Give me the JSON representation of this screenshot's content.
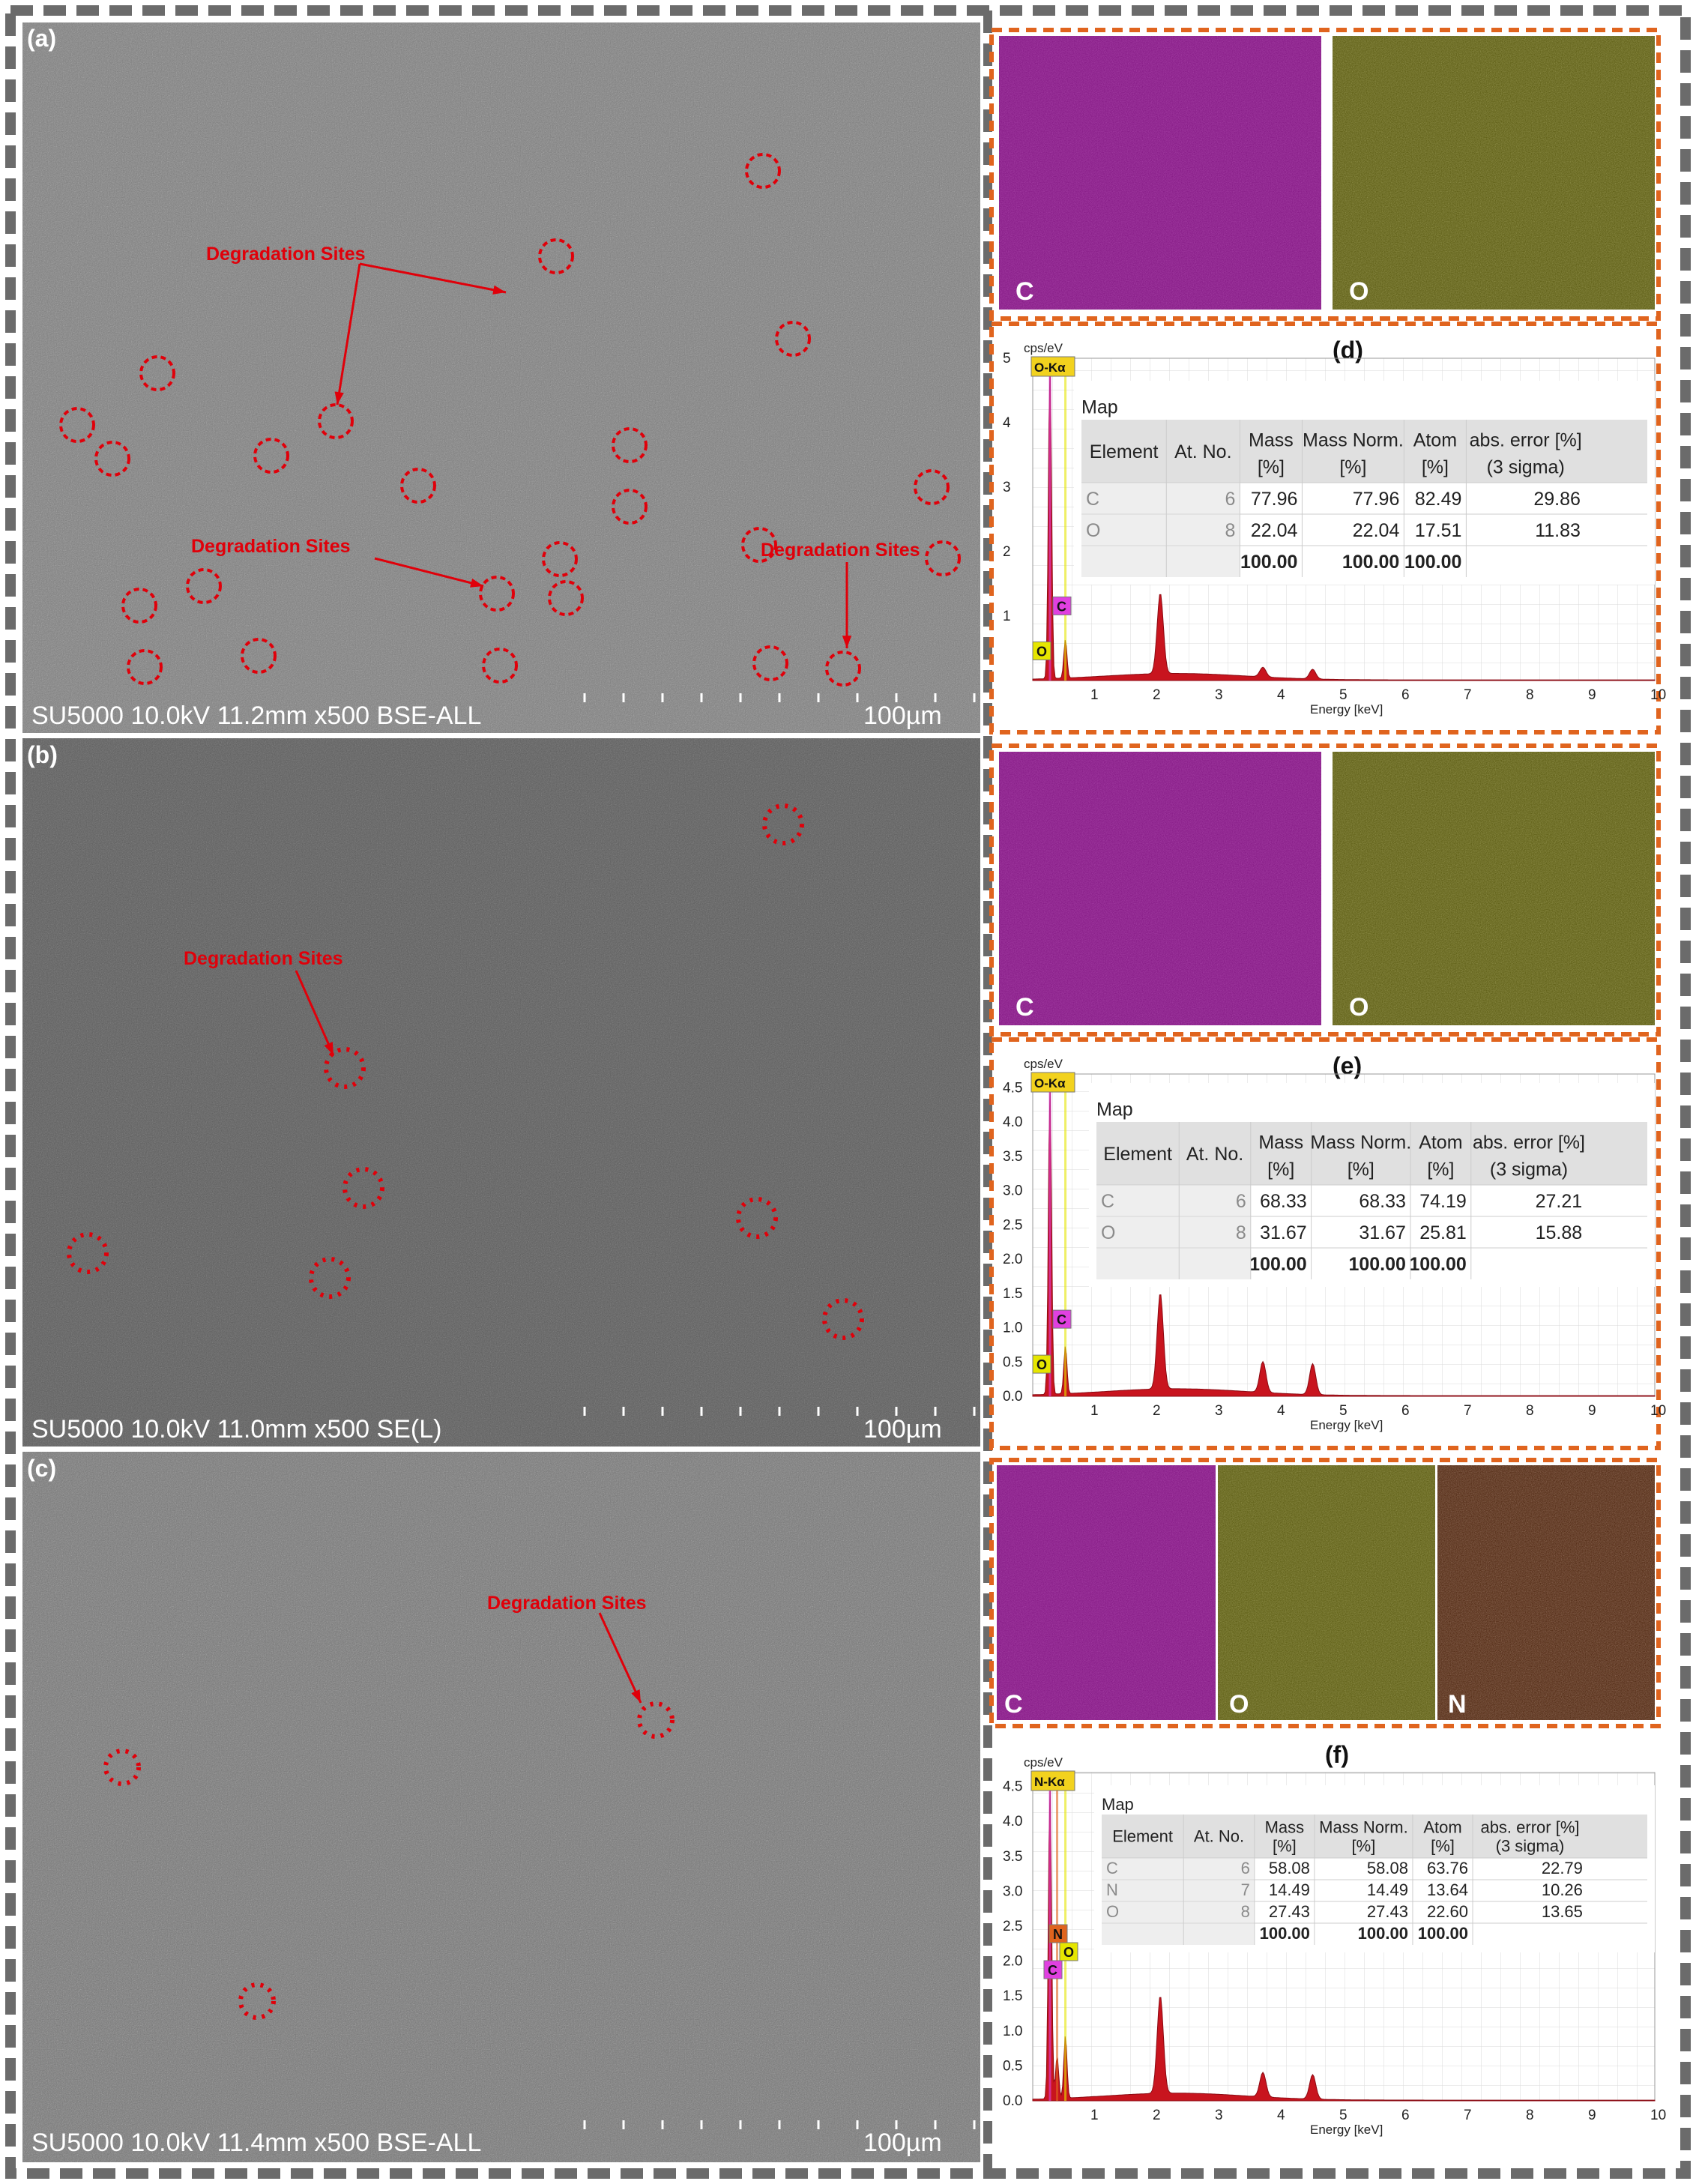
{
  "panels": {
    "a": {
      "letter": "(a)",
      "info_bar": "SU5000 10.0kV 11.2mm x500 BSE-ALL",
      "scale": "100µm",
      "annotations": [
        "Degradation Sites",
        "Degradation Sites",
        "Degradation Sites"
      ]
    },
    "b": {
      "letter": "(b)",
      "info_bar": "SU5000 10.0kV 11.0mm x500 SE(L)",
      "scale": "100µm",
      "annotations": [
        "Degradation Sites"
      ]
    },
    "c": {
      "letter": "(c)",
      "info_bar": "SU5000 10.0kV 11.4mm x500 BSE-ALL",
      "scale": "100µm",
      "annotations": [
        "Degradation Sites"
      ]
    }
  },
  "maps": {
    "d": [
      "C",
      "O"
    ],
    "e": [
      "C",
      "O"
    ],
    "f": [
      "C",
      "O",
      "N"
    ]
  },
  "table_headers": {
    "title": "Map",
    "element": "Element",
    "at_no": "At. No.",
    "mass": [
      "Mass",
      "[%]"
    ],
    "mass_norm": [
      "Mass Norm.",
      "[%]"
    ],
    "atom": [
      "Atom",
      "[%]"
    ],
    "abs_error": [
      "abs. error [%]",
      "(3 sigma)"
    ]
  },
  "chart_data": [
    {
      "type": "table",
      "panel": "(d)",
      "rows": [
        {
          "element": "C",
          "at_no": "6",
          "mass": "77.96",
          "mass_norm": "77.96",
          "atom": "82.49",
          "abs_error": "29.86"
        },
        {
          "element": "O",
          "at_no": "8",
          "mass": "22.04",
          "mass_norm": "22.04",
          "atom": "17.51",
          "abs_error": "11.83"
        }
      ],
      "totals": {
        "mass": "100.00",
        "mass_norm": "100.00",
        "atom": "100.00"
      },
      "spectrum": {
        "type": "area",
        "ylabel": "cps/eV",
        "xlabel": "Energy [keV]",
        "xlim": [
          0,
          10
        ],
        "ylim": [
          0,
          5
        ],
        "xticks": [
          "1",
          "2",
          "3",
          "4",
          "5",
          "6",
          "7",
          "8",
          "9",
          "10"
        ],
        "yticks": [
          "1",
          "2",
          "3",
          "4",
          "5"
        ],
        "peaks": [
          {
            "label": "C",
            "x": 0.277,
            "y": 5.0
          },
          {
            "label": "O",
            "x": 0.525,
            "y": 0.6
          },
          {
            "label": "",
            "x": 2.05,
            "y": 1.25
          },
          {
            "label": "",
            "x": 3.7,
            "y": 0.15
          },
          {
            "label": "",
            "x": 4.5,
            "y": 0.15
          }
        ],
        "line_markers": [
          "O-Kα",
          "C",
          "O"
        ]
      }
    },
    {
      "type": "table",
      "panel": "(e)",
      "rows": [
        {
          "element": "C",
          "at_no": "6",
          "mass": "68.33",
          "mass_norm": "68.33",
          "atom": "74.19",
          "abs_error": "27.21"
        },
        {
          "element": "O",
          "at_no": "8",
          "mass": "31.67",
          "mass_norm": "31.67",
          "atom": "25.81",
          "abs_error": "15.88"
        }
      ],
      "totals": {
        "mass": "100.00",
        "mass_norm": "100.00",
        "atom": "100.00"
      },
      "spectrum": {
        "type": "area",
        "ylabel": "cps/eV",
        "xlabel": "Energy [keV]",
        "xlim": [
          0,
          10
        ],
        "ylim": [
          0,
          4.7
        ],
        "xticks": [
          "1",
          "2",
          "3",
          "4",
          "5",
          "6",
          "7",
          "8",
          "9",
          "10"
        ],
        "yticks": [
          "0.0",
          "0.5",
          "1.0",
          "1.5",
          "2.0",
          "2.5",
          "3.0",
          "3.5",
          "4.0",
          "4.5"
        ],
        "peaks": [
          {
            "label": "C",
            "x": 0.277,
            "y": 4.6
          },
          {
            "label": "O",
            "x": 0.525,
            "y": 0.7
          },
          {
            "label": "",
            "x": 2.05,
            "y": 1.4
          },
          {
            "label": "",
            "x": 3.7,
            "y": 0.45
          },
          {
            "label": "",
            "x": 4.5,
            "y": 0.45
          }
        ],
        "line_markers": [
          "O-Kα",
          "C",
          "O"
        ]
      }
    },
    {
      "type": "table",
      "panel": "(f)",
      "rows": [
        {
          "element": "C",
          "at_no": "6",
          "mass": "58.08",
          "mass_norm": "58.08",
          "atom": "63.76",
          "abs_error": "22.79"
        },
        {
          "element": "N",
          "at_no": "7",
          "mass": "14.49",
          "mass_norm": "14.49",
          "atom": "13.64",
          "abs_error": "10.26"
        },
        {
          "element": "O",
          "at_no": "8",
          "mass": "27.43",
          "mass_norm": "27.43",
          "atom": "22.60",
          "abs_error": "13.65"
        }
      ],
      "totals": {
        "mass": "100.00",
        "mass_norm": "100.00",
        "atom": "100.00"
      },
      "spectrum": {
        "type": "area",
        "ylabel": "cps/eV",
        "xlabel": "Energy [keV]",
        "xlim": [
          0,
          10
        ],
        "ylim": [
          0,
          4.7
        ],
        "xticks": [
          "1",
          "2",
          "3",
          "4",
          "5",
          "6",
          "7",
          "8",
          "9",
          "10"
        ],
        "yticks": [
          "0.0",
          "0.5",
          "1.0",
          "1.5",
          "2.0",
          "2.5",
          "3.0",
          "3.5",
          "4.0",
          "4.5"
        ],
        "peaks": [
          {
            "label": "C",
            "x": 0.277,
            "y": 4.6
          },
          {
            "label": "N",
            "x": 0.392,
            "y": 0.6
          },
          {
            "label": "O",
            "x": 0.525,
            "y": 0.9
          },
          {
            "label": "",
            "x": 2.05,
            "y": 1.4
          },
          {
            "label": "",
            "x": 3.7,
            "y": 0.35
          },
          {
            "label": "",
            "x": 4.5,
            "y": 0.35
          }
        ],
        "line_markers": [
          "N-Kα",
          "N",
          "O",
          "C"
        ]
      }
    }
  ],
  "colors": {
    "frame_dash": "#6b6b6b",
    "orange_dash": "#e0641e",
    "annotation_red": "#e0000a",
    "spectrum_fill": "#c8141e",
    "carbon_map": "#c81ec8",
    "oxygen_map": "#d2d21e",
    "nitrogen_map": "#e0641e"
  }
}
